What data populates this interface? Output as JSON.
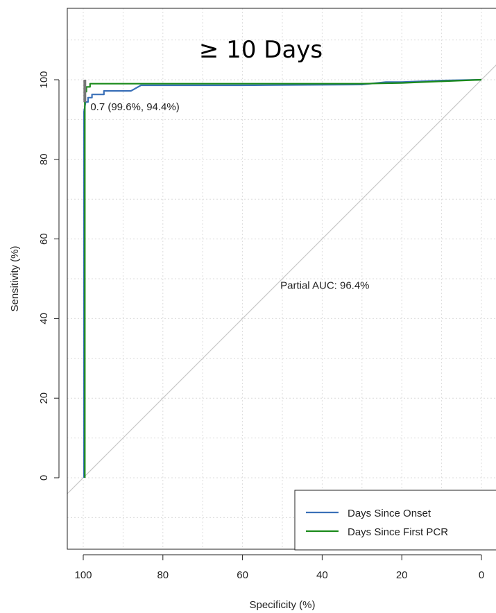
{
  "chart_data": {
    "type": "line",
    "title": "≥ 10 Days",
    "xlabel": "Specificity (%)",
    "ylabel": "Sensitivity (%)",
    "xlim": [
      100,
      0
    ],
    "ylim": [
      -18,
      118
    ],
    "x_ticks": [
      100,
      80,
      60,
      40,
      20,
      0
    ],
    "y_ticks": [
      0,
      20,
      40,
      60,
      80,
      100
    ],
    "grid": true,
    "legend_position": "bottom-right",
    "series": [
      {
        "name": "Days Since Onset",
        "color": "#3a70b8",
        "points": [
          [
            99.8,
            0
          ],
          [
            99.8,
            92
          ],
          [
            99.4,
            94.4
          ],
          [
            98.8,
            94.4
          ],
          [
            98.8,
            95.5
          ],
          [
            97.8,
            95.5
          ],
          [
            97.8,
            96.3
          ],
          [
            94.8,
            96.3
          ],
          [
            94.8,
            97.2
          ],
          [
            88,
            97.2
          ],
          [
            85.5,
            98.6
          ],
          [
            82,
            98.6
          ],
          [
            60,
            98.6
          ],
          [
            30,
            98.8
          ],
          [
            24,
            99.4
          ],
          [
            20,
            99.4
          ],
          [
            10,
            99.8
          ],
          [
            0,
            100
          ]
        ]
      },
      {
        "name": "Days Since First PCR",
        "color": "#1a8a1a",
        "points": [
          [
            99.6,
            0
          ],
          [
            99.6,
            93
          ],
          [
            99.6,
            97
          ],
          [
            99.2,
            97
          ],
          [
            99.2,
            98.2
          ],
          [
            98.3,
            98.2
          ],
          [
            98.3,
            99
          ],
          [
            85,
            99
          ],
          [
            30,
            99
          ],
          [
            20,
            99.2
          ],
          [
            0,
            100
          ]
        ]
      }
    ],
    "reference_line": {
      "color": "#c8c8c8"
    },
    "highlight_bar": {
      "x": 99.6,
      "y_from": 94.4,
      "y_to": 100,
      "color": "#777777"
    },
    "annotations": [
      {
        "text": "0.7 (99.6%, 94.4%)",
        "x": 98.2,
        "y": 92.3
      },
      {
        "text": "Partial AUC: 96.4%",
        "x": 50.5,
        "y": 47.5
      }
    ]
  }
}
